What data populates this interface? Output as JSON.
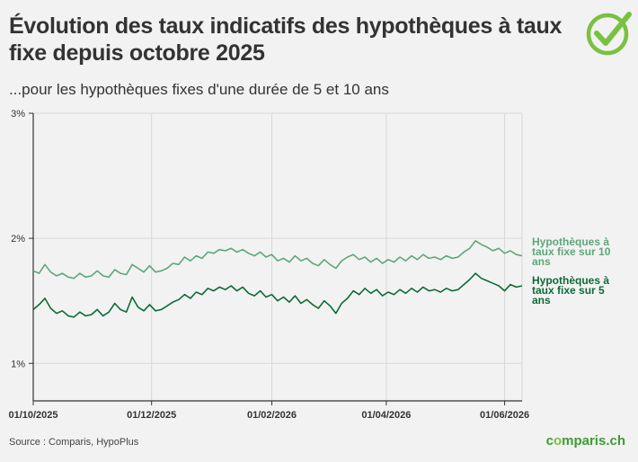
{
  "header": {
    "title": "Évolution des taux indicatifs des hypothèques à taux fixe depuis octobre 2025",
    "subtitle": "...pour les hypothèques fixes d'une durée de 5 et 10 ans"
  },
  "footer": {
    "source": "Source : Comparis, HypoPlus",
    "brand_prefix": "c",
    "brand_o": "o",
    "brand_suffix": "mparis.ch"
  },
  "logo": {
    "icon": "checkmark-circle-icon",
    "color": "#7ac142"
  },
  "colors": {
    "ten_year": "#5fa67a",
    "five_year": "#0c6b37",
    "grid": "#d8d8d8",
    "axis": "#333333",
    "background": "#f2f2f2"
  },
  "chart_data": {
    "type": "line",
    "xlabel": "",
    "ylabel": "",
    "ylim": [
      0.7,
      3.0
    ],
    "xlim": [
      "2025-10-01",
      "2026-06-10"
    ],
    "y_ticks": [
      {
        "value": 3,
        "label": "3%"
      },
      {
        "value": 2,
        "label": "2%"
      },
      {
        "value": 1,
        "label": "1%"
      }
    ],
    "x_ticks": [
      {
        "value": "2025-10-01",
        "label": "01/10/2025"
      },
      {
        "value": "2025-12-01",
        "label": "01/12/2025"
      },
      {
        "value": "2026-02-01",
        "label": "01/02/2026"
      },
      {
        "value": "2026-04-01",
        "label": "01/04/2026"
      },
      {
        "value": "2026-06-01",
        "label": "01/06/2026"
      }
    ],
    "grid": true,
    "legend": "right, end of lines",
    "series": [
      {
        "name": "Hypothèques à taux fixe sur 10 ans",
        "label_lines": [
          "Hypothèques à",
          "taux fixe sur 10",
          "ans"
        ],
        "color": "#5fa67a",
        "points": [
          [
            "2025-10-01",
            1.74
          ],
          [
            "2025-10-04",
            1.72
          ],
          [
            "2025-10-07",
            1.79
          ],
          [
            "2025-10-10",
            1.73
          ],
          [
            "2025-10-13",
            1.7
          ],
          [
            "2025-10-16",
            1.72
          ],
          [
            "2025-10-19",
            1.69
          ],
          [
            "2025-10-22",
            1.68
          ],
          [
            "2025-10-25",
            1.72
          ],
          [
            "2025-10-28",
            1.69
          ],
          [
            "2025-10-31",
            1.7
          ],
          [
            "2025-11-03",
            1.74
          ],
          [
            "2025-11-06",
            1.7
          ],
          [
            "2025-11-09",
            1.69
          ],
          [
            "2025-11-12",
            1.75
          ],
          [
            "2025-11-15",
            1.72
          ],
          [
            "2025-11-18",
            1.71
          ],
          [
            "2025-11-21",
            1.79
          ],
          [
            "2025-11-24",
            1.76
          ],
          [
            "2025-11-27",
            1.73
          ],
          [
            "2025-11-30",
            1.78
          ],
          [
            "2025-12-03",
            1.73
          ],
          [
            "2025-12-06",
            1.74
          ],
          [
            "2025-12-09",
            1.76
          ],
          [
            "2025-12-12",
            1.8
          ],
          [
            "2025-12-15",
            1.79
          ],
          [
            "2025-12-18",
            1.85
          ],
          [
            "2025-12-21",
            1.82
          ],
          [
            "2025-12-24",
            1.86
          ],
          [
            "2025-12-27",
            1.84
          ],
          [
            "2025-12-30",
            1.89
          ],
          [
            "2026-01-02",
            1.88
          ],
          [
            "2026-01-05",
            1.91
          ],
          [
            "2026-01-08",
            1.9
          ],
          [
            "2026-01-11",
            1.92
          ],
          [
            "2026-01-14",
            1.89
          ],
          [
            "2026-01-17",
            1.91
          ],
          [
            "2026-01-20",
            1.88
          ],
          [
            "2026-01-23",
            1.86
          ],
          [
            "2026-01-26",
            1.89
          ],
          [
            "2026-01-29",
            1.85
          ],
          [
            "2026-02-01",
            1.87
          ],
          [
            "2026-02-04",
            1.82
          ],
          [
            "2026-02-07",
            1.84
          ],
          [
            "2026-02-10",
            1.81
          ],
          [
            "2026-02-13",
            1.86
          ],
          [
            "2026-02-16",
            1.82
          ],
          [
            "2026-02-19",
            1.84
          ],
          [
            "2026-02-22",
            1.8
          ],
          [
            "2026-02-25",
            1.78
          ],
          [
            "2026-02-28",
            1.83
          ],
          [
            "2026-03-03",
            1.79
          ],
          [
            "2026-03-06",
            1.76
          ],
          [
            "2026-03-09",
            1.82
          ],
          [
            "2026-03-12",
            1.85
          ],
          [
            "2026-03-15",
            1.87
          ],
          [
            "2026-03-18",
            1.83
          ],
          [
            "2026-03-21",
            1.85
          ],
          [
            "2026-03-24",
            1.81
          ],
          [
            "2026-03-27",
            1.84
          ],
          [
            "2026-03-30",
            1.8
          ],
          [
            "2026-04-02",
            1.83
          ],
          [
            "2026-04-05",
            1.81
          ],
          [
            "2026-04-08",
            1.85
          ],
          [
            "2026-04-11",
            1.82
          ],
          [
            "2026-04-14",
            1.86
          ],
          [
            "2026-04-17",
            1.83
          ],
          [
            "2026-04-20",
            1.87
          ],
          [
            "2026-04-23",
            1.84
          ],
          [
            "2026-04-26",
            1.85
          ],
          [
            "2026-04-29",
            1.83
          ],
          [
            "2026-05-02",
            1.86
          ],
          [
            "2026-05-05",
            1.84
          ],
          [
            "2026-05-08",
            1.85
          ],
          [
            "2026-05-11",
            1.89
          ],
          [
            "2026-05-14",
            1.92
          ],
          [
            "2026-05-17",
            1.98
          ],
          [
            "2026-05-20",
            1.95
          ],
          [
            "2026-05-23",
            1.93
          ],
          [
            "2026-05-26",
            1.9
          ],
          [
            "2026-05-29",
            1.92
          ],
          [
            "2026-06-01",
            1.88
          ],
          [
            "2026-06-04",
            1.9
          ],
          [
            "2026-06-07",
            1.87
          ],
          [
            "2026-06-10",
            1.86
          ]
        ]
      },
      {
        "name": "Hypothèques à taux fixe sur 5 ans",
        "label_lines": [
          "Hypothèques à",
          "taux fixe sur 5",
          "ans"
        ],
        "color": "#0c6b37",
        "points": [
          [
            "2025-10-01",
            1.43
          ],
          [
            "2025-10-04",
            1.47
          ],
          [
            "2025-10-07",
            1.52
          ],
          [
            "2025-10-10",
            1.44
          ],
          [
            "2025-10-13",
            1.4
          ],
          [
            "2025-10-16",
            1.42
          ],
          [
            "2025-10-19",
            1.38
          ],
          [
            "2025-10-22",
            1.37
          ],
          [
            "2025-10-25",
            1.41
          ],
          [
            "2025-10-28",
            1.38
          ],
          [
            "2025-10-31",
            1.39
          ],
          [
            "2025-11-03",
            1.43
          ],
          [
            "2025-11-06",
            1.38
          ],
          [
            "2025-11-09",
            1.41
          ],
          [
            "2025-11-12",
            1.48
          ],
          [
            "2025-11-15",
            1.43
          ],
          [
            "2025-11-18",
            1.41
          ],
          [
            "2025-11-21",
            1.53
          ],
          [
            "2025-11-24",
            1.45
          ],
          [
            "2025-11-27",
            1.42
          ],
          [
            "2025-11-30",
            1.47
          ],
          [
            "2025-12-03",
            1.42
          ],
          [
            "2025-12-06",
            1.43
          ],
          [
            "2025-12-09",
            1.46
          ],
          [
            "2025-12-12",
            1.49
          ],
          [
            "2025-12-15",
            1.51
          ],
          [
            "2025-12-18",
            1.55
          ],
          [
            "2025-12-21",
            1.52
          ],
          [
            "2025-12-24",
            1.57
          ],
          [
            "2025-12-27",
            1.55
          ],
          [
            "2025-12-30",
            1.6
          ],
          [
            "2026-01-02",
            1.58
          ],
          [
            "2026-01-05",
            1.61
          ],
          [
            "2026-01-08",
            1.59
          ],
          [
            "2026-01-11",
            1.62
          ],
          [
            "2026-01-14",
            1.58
          ],
          [
            "2026-01-17",
            1.61
          ],
          [
            "2026-01-20",
            1.56
          ],
          [
            "2026-01-23",
            1.54
          ],
          [
            "2026-01-26",
            1.58
          ],
          [
            "2026-01-29",
            1.53
          ],
          [
            "2026-02-01",
            1.55
          ],
          [
            "2026-02-04",
            1.5
          ],
          [
            "2026-02-07",
            1.53
          ],
          [
            "2026-02-10",
            1.49
          ],
          [
            "2026-02-13",
            1.54
          ],
          [
            "2026-02-16",
            1.48
          ],
          [
            "2026-02-19",
            1.51
          ],
          [
            "2026-02-22",
            1.47
          ],
          [
            "2026-02-25",
            1.44
          ],
          [
            "2026-02-28",
            1.5
          ],
          [
            "2026-03-03",
            1.46
          ],
          [
            "2026-03-06",
            1.4
          ],
          [
            "2026-03-09",
            1.48
          ],
          [
            "2026-03-12",
            1.52
          ],
          [
            "2026-03-15",
            1.58
          ],
          [
            "2026-03-18",
            1.55
          ],
          [
            "2026-03-21",
            1.6
          ],
          [
            "2026-03-24",
            1.56
          ],
          [
            "2026-03-27",
            1.59
          ],
          [
            "2026-03-30",
            1.54
          ],
          [
            "2026-04-02",
            1.57
          ],
          [
            "2026-04-05",
            1.55
          ],
          [
            "2026-04-08",
            1.59
          ],
          [
            "2026-04-11",
            1.56
          ],
          [
            "2026-04-14",
            1.6
          ],
          [
            "2026-04-17",
            1.57
          ],
          [
            "2026-04-20",
            1.61
          ],
          [
            "2026-04-23",
            1.58
          ],
          [
            "2026-04-26",
            1.59
          ],
          [
            "2026-04-29",
            1.57
          ],
          [
            "2026-05-02",
            1.6
          ],
          [
            "2026-05-05",
            1.58
          ],
          [
            "2026-05-08",
            1.59
          ],
          [
            "2026-05-11",
            1.63
          ],
          [
            "2026-05-14",
            1.67
          ],
          [
            "2026-05-17",
            1.72
          ],
          [
            "2026-05-20",
            1.68
          ],
          [
            "2026-05-23",
            1.66
          ],
          [
            "2026-05-26",
            1.64
          ],
          [
            "2026-05-29",
            1.62
          ],
          [
            "2026-06-01",
            1.58
          ],
          [
            "2026-06-04",
            1.63
          ],
          [
            "2026-06-07",
            1.61
          ],
          [
            "2026-06-10",
            1.62
          ]
        ]
      }
    ]
  }
}
